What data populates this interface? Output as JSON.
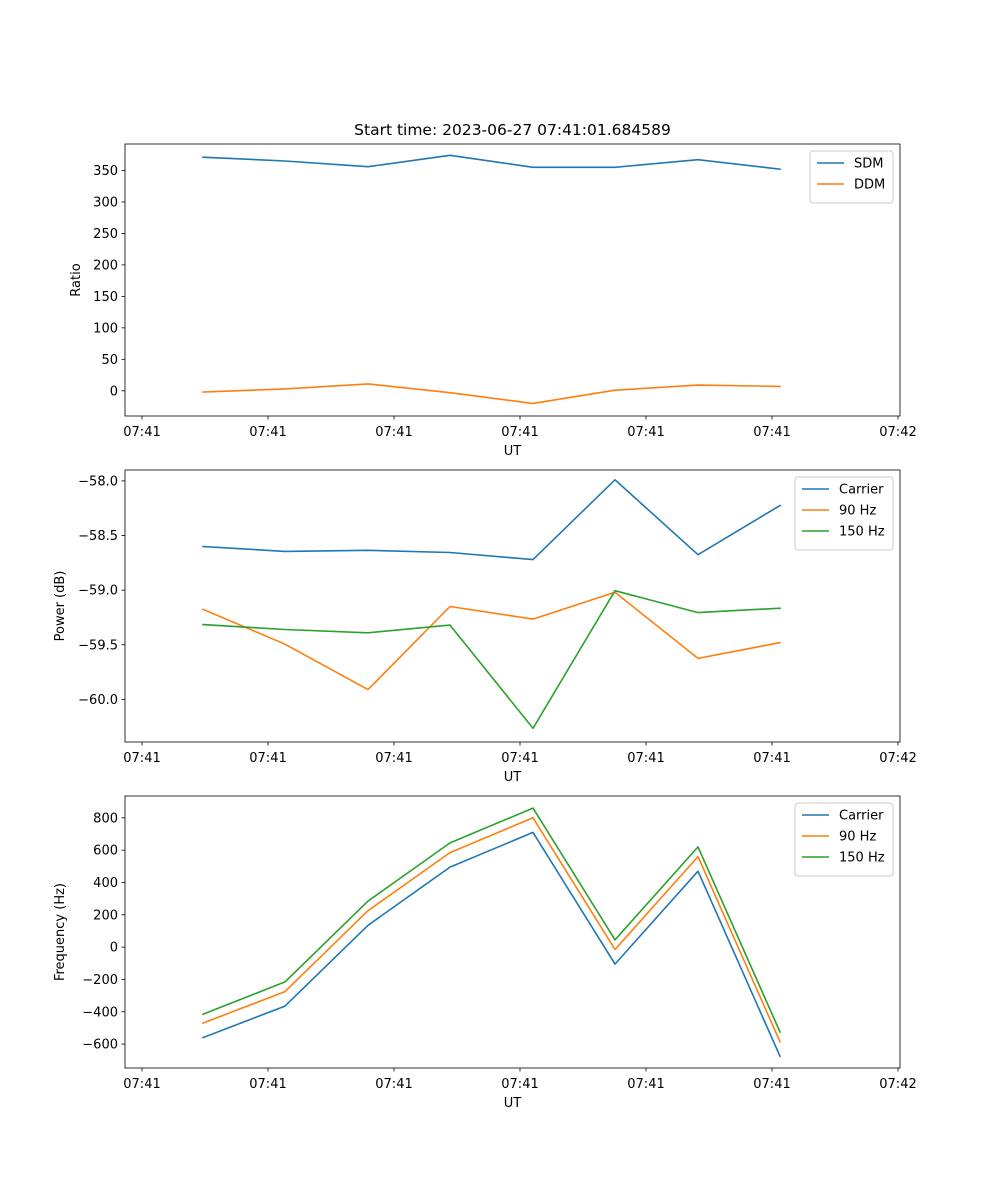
{
  "chart_data": [
    {
      "type": "line",
      "title": "Start time: 2023-06-27 07:41:01.684589",
      "xlabel": "UT",
      "ylabel": "Ratio",
      "x": [
        1,
        2,
        3,
        4,
        5,
        6,
        7,
        8
      ],
      "x_tick_labels": [
        "07:41",
        "07:41",
        "07:41",
        "07:41",
        "07:41",
        "07:41",
        "07:41",
        "07:42"
      ],
      "ylim": [
        -40,
        392
      ],
      "yticks": [
        0,
        50,
        100,
        150,
        200,
        250,
        300,
        350
      ],
      "legend": "top-right",
      "grid": false,
      "series": [
        {
          "name": "SDM",
          "color": "#1f77b4",
          "values": [
            371,
            365,
            356,
            374,
            355,
            355,
            367,
            352
          ]
        },
        {
          "name": "DDM",
          "color": "#ff7f0e",
          "values": [
            -2,
            3,
            11,
            -3,
            -20,
            1,
            9,
            7
          ]
        }
      ]
    },
    {
      "type": "line",
      "title": "",
      "xlabel": "UT",
      "ylabel": "Power (dB)",
      "x": [
        1,
        2,
        3,
        4,
        5,
        6,
        7,
        8
      ],
      "x_tick_labels": [
        "07:41",
        "07:41",
        "07:41",
        "07:41",
        "07:41",
        "07:41",
        "07:41",
        "07:42"
      ],
      "ylim": [
        -60.39,
        -57.9
      ],
      "yticks": [
        -60.0,
        -59.5,
        -59.0,
        -58.5,
        -58.0
      ],
      "ytick_labels": [
        "−60.0",
        "−59.5",
        "−59.0",
        "−58.5",
        "−58.0"
      ],
      "legend": "top-right",
      "grid": false,
      "series": [
        {
          "name": "Carrier",
          "color": "#1f77b4",
          "values": [
            -58.6,
            -58.645,
            -58.635,
            -58.655,
            -58.72,
            -57.99,
            -58.675,
            -58.225
          ]
        },
        {
          "name": "90 Hz",
          "color": "#ff7f0e",
          "values": [
            -59.175,
            -59.495,
            -59.91,
            -59.15,
            -59.265,
            -59.02,
            -59.625,
            -59.48
          ]
        },
        {
          "name": "150 Hz",
          "color": "#2ca02c",
          "values": [
            -59.315,
            -59.36,
            -59.39,
            -59.32,
            -60.265,
            -59.005,
            -59.205,
            -59.165
          ]
        }
      ]
    },
    {
      "type": "line",
      "title": "",
      "xlabel": "UT",
      "ylabel": "Frequency (Hz)",
      "x": [
        1,
        2,
        3,
        4,
        5,
        6,
        7,
        8
      ],
      "x_tick_labels": [
        "07:41",
        "07:41",
        "07:41",
        "07:41",
        "07:41",
        "07:41",
        "07:41",
        "07:42"
      ],
      "ylim": [
        -748,
        935
      ],
      "yticks": [
        -600,
        -400,
        -200,
        0,
        200,
        400,
        600,
        800
      ],
      "ytick_labels": [
        "−600",
        "−400",
        "−200",
        "0",
        "200",
        "400",
        "600",
        "800"
      ],
      "legend": "top-right",
      "grid": false,
      "series": [
        {
          "name": "Carrier",
          "color": "#1f77b4",
          "values": [
            -560,
            -365,
            135,
            495,
            710,
            -105,
            470,
            -675
          ]
        },
        {
          "name": "90 Hz",
          "color": "#ff7f0e",
          "values": [
            -470,
            -275,
            225,
            585,
            800,
            -15,
            560,
            -585
          ]
        },
        {
          "name": "150 Hz",
          "color": "#2ca02c",
          "values": [
            -415,
            -215,
            285,
            645,
            860,
            45,
            620,
            -525
          ]
        }
      ]
    }
  ]
}
